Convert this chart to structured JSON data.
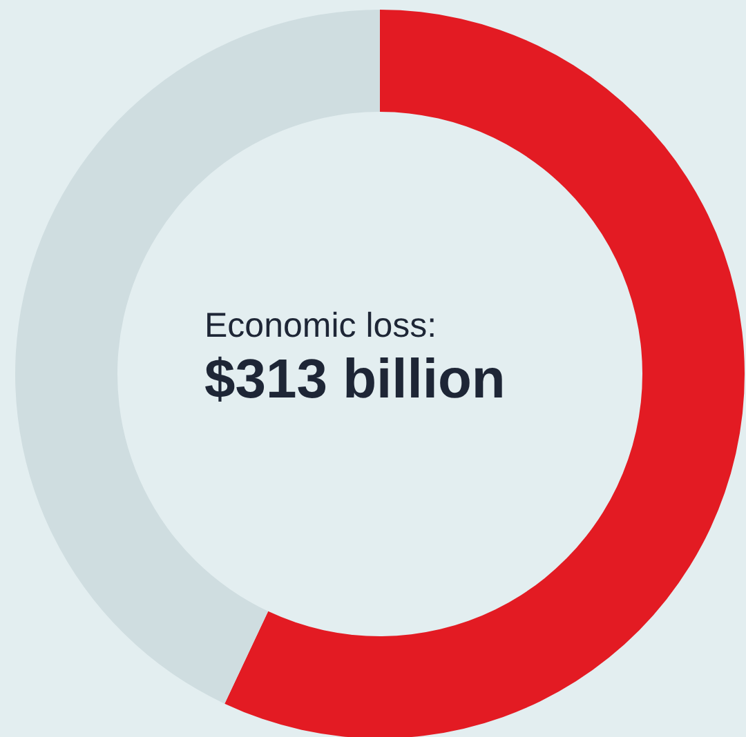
{
  "chart_data": {
    "type": "donut",
    "categories": [
      null,
      null
    ],
    "values": [
      57,
      43
    ],
    "colors": [
      "#e31b23",
      "#cfdde0"
    ],
    "annotations": [
      "Economic loss:",
      "$313 billion"
    ]
  }
}
